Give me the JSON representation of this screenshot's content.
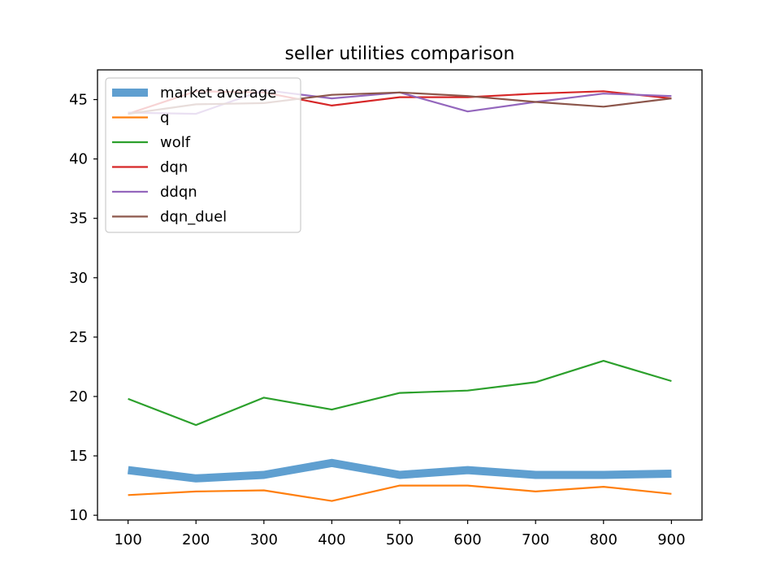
{
  "chart_data": {
    "type": "line",
    "title": "seller utilities comparison",
    "xlabel": "",
    "ylabel": "",
    "x": [
      100,
      200,
      300,
      400,
      500,
      600,
      700,
      800,
      900
    ],
    "xlim": [
      55,
      945
    ],
    "ylim": [
      9.6,
      47.5
    ],
    "xticks": [
      100,
      200,
      300,
      400,
      500,
      600,
      700,
      800,
      900
    ],
    "yticks": [
      10,
      15,
      20,
      25,
      30,
      35,
      40,
      45
    ],
    "grid": false,
    "legend_position": "upper-left",
    "series": [
      {
        "name": "market average",
        "color": "#5f9fd0",
        "thick": true,
        "values": [
          13.8,
          13.1,
          13.4,
          14.4,
          13.4,
          13.8,
          13.4,
          13.4,
          13.5
        ]
      },
      {
        "name": "q",
        "color": "#ff7f0e",
        "values": [
          11.7,
          12.0,
          12.1,
          11.2,
          12.5,
          12.5,
          12.0,
          12.4,
          11.8
        ]
      },
      {
        "name": "wolf",
        "color": "#2ca02c",
        "values": [
          19.8,
          17.6,
          19.9,
          18.9,
          20.3,
          20.5,
          21.2,
          23.0,
          21.3
        ]
      },
      {
        "name": "dqn",
        "color": "#d62728",
        "values": [
          43.8,
          45.7,
          45.6,
          44.5,
          45.2,
          45.2,
          45.5,
          45.7,
          45.1
        ]
      },
      {
        "name": "ddqn",
        "color": "#9467bd",
        "values": [
          43.9,
          43.8,
          45.8,
          45.1,
          45.6,
          44.0,
          44.8,
          45.5,
          45.3
        ]
      },
      {
        "name": "dqn_duel",
        "color": "#8c564b",
        "values": [
          43.8,
          44.6,
          44.7,
          45.4,
          45.6,
          45.3,
          44.8,
          44.4,
          45.1
        ]
      }
    ]
  }
}
